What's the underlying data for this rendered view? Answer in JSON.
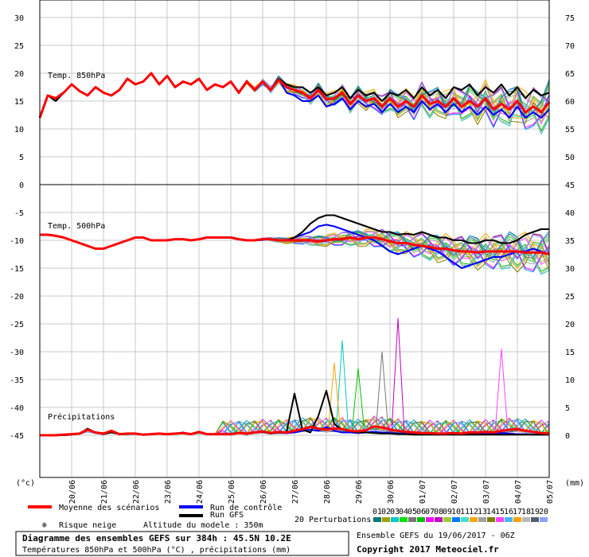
{
  "chart_data": {
    "type": "line",
    "title": "Diagramme des ensembles GEFS sur 384h : 45.5N 10.2E",
    "subtitle": "Températures 850hPa et 500hPa (°C) , précipitations (mm)",
    "run_info": "Ensemble GEFS du 19/06/2017 - 06Z",
    "copyright": "Copyright 2017 Meteociel.fr",
    "altitude_note": "Altitude du modele : 350m",
    "left_unit": "(°c)",
    "right_unit": "(mm)",
    "x_tick_labels": [
      "20/06",
      "21/06",
      "22/06",
      "23/06",
      "24/06",
      "25/06",
      "26/06",
      "27/06",
      "28/06",
      "29/06",
      "30/06",
      "01/07",
      "02/07",
      "03/07",
      "04/07",
      "05/07"
    ],
    "x_range_days": [
      0,
      16
    ],
    "left_axis": {
      "ticks_top": [
        "30",
        "25",
        "20",
        "15",
        "10",
        "5",
        "0"
      ],
      "ticks_bottom": [
        "-5",
        "-10",
        "-15",
        "-20",
        "-25",
        "-30",
        "-35",
        "-40",
        "-45"
      ]
    },
    "right_axis": {
      "ticks_top": [
        "75",
        "70",
        "65",
        "60",
        "55",
        "50",
        "45"
      ],
      "ticks_bottom": [
        "40",
        "35",
        "30",
        "25",
        "20",
        "15",
        "10",
        "5",
        "0"
      ]
    },
    "panels": {
      "t850": {
        "label": "Temp. 850hPa",
        "ylim": [
          0,
          30
        ],
        "mean": [
          12,
          16,
          15.5,
          16.5,
          18,
          16.8,
          16,
          17.5,
          16.5,
          16,
          17,
          19,
          18,
          18.5,
          20,
          18,
          19.5,
          17.5,
          18.5,
          18,
          19,
          17,
          18,
          17.5,
          18.5,
          16.5,
          18.5,
          17,
          18.5,
          17,
          18.8,
          17.5,
          17,
          16.5,
          15.5,
          17,
          15.3,
          15.5,
          16.5,
          14.5,
          16,
          15,
          15.5,
          14,
          15.5,
          14,
          15,
          14,
          16,
          14.5,
          15,
          14,
          15.5,
          14,
          15,
          14,
          15.5,
          13.5,
          14.5,
          13.5,
          15,
          13,
          14,
          13,
          14.8
        ],
        "control": [
          12,
          16,
          15.5,
          16.5,
          18,
          16.8,
          16,
          17.5,
          16.5,
          16,
          17,
          19,
          18,
          18.5,
          20,
          18,
          19.5,
          17.5,
          18.5,
          18,
          19,
          17,
          18,
          17.5,
          18.5,
          16.5,
          18.5,
          17,
          18.5,
          17,
          19,
          16.5,
          16,
          15,
          15,
          16,
          14,
          14.5,
          15.5,
          13.5,
          15,
          14,
          14.5,
          13,
          14.5,
          13,
          14,
          13,
          15,
          13.5,
          14.5,
          13,
          14.5,
          13,
          14,
          12.5,
          14,
          12.5,
          13.5,
          12,
          14,
          12,
          13,
          12,
          13.5
        ],
        "gfs": [
          12,
          16,
          15,
          16.5,
          18,
          16.8,
          16,
          17.5,
          16.5,
          16,
          17,
          19,
          18,
          18.5,
          20,
          18,
          19.5,
          17.5,
          18.5,
          18,
          19,
          17,
          18,
          17.5,
          18.5,
          16.5,
          18.5,
          17,
          18.5,
          17,
          19,
          18,
          17.5,
          17.5,
          16.5,
          17.5,
          16,
          16.5,
          17.5,
          15.5,
          17,
          16,
          16.5,
          15,
          16.5,
          16,
          17,
          15.5,
          17.5,
          16,
          17,
          15.5,
          17.5,
          17,
          18,
          16,
          17.5,
          16.5,
          18,
          16,
          17.5,
          15.5,
          17,
          16,
          16.5
        ]
      },
      "t500": {
        "label": "Temp. 500hPa",
        "ylim": [
          -45,
          0
        ],
        "mean": [
          -9,
          -9,
          -9.2,
          -9.5,
          -10,
          -10.5,
          -11,
          -11.5,
          -11.5,
          -11,
          -10.5,
          -10,
          -9.5,
          -9.5,
          -10,
          -10,
          -10,
          -9.8,
          -9.8,
          -10,
          -9.8,
          -9.5,
          -9.5,
          -9.5,
          -9.5,
          -9.8,
          -10,
          -10,
          -9.8,
          -9.8,
          -10,
          -10,
          -10,
          -10,
          -10,
          -10.2,
          -10,
          -9.8,
          -9.8,
          -9.5,
          -9.8,
          -9.5,
          -9.5,
          -9.8,
          -10.2,
          -10.5,
          -10.5,
          -10.8,
          -11,
          -11.2,
          -11.5,
          -11.5,
          -11.8,
          -12,
          -12,
          -12.2,
          -12,
          -12,
          -12,
          -12,
          -12,
          -12.2,
          -12.2,
          -12.2,
          -12.5
        ],
        "control": [
          -9,
          -9,
          -9.2,
          -9.5,
          -10,
          -10.5,
          -11,
          -11.5,
          -11.5,
          -11,
          -10.5,
          -10,
          -9.5,
          -9.5,
          -10,
          -10,
          -10,
          -9.8,
          -9.8,
          -10,
          -9.8,
          -9.5,
          -9.5,
          -9.5,
          -9.5,
          -9.8,
          -10,
          -10,
          -9.8,
          -9.8,
          -10,
          -10,
          -9.5,
          -9,
          -8.5,
          -7.5,
          -7.2,
          -7.5,
          -8,
          -8.5,
          -9,
          -9.5,
          -10,
          -11,
          -12,
          -12.5,
          -12,
          -11.5,
          -11,
          -11.5,
          -12,
          -13,
          -14,
          -15,
          -14.5,
          -14,
          -13.5,
          -13,
          -13,
          -12.5,
          -12,
          -12,
          -11.5,
          -12,
          -12.5
        ],
        "gfs": [
          -9,
          -9,
          -9.2,
          -9.5,
          -10,
          -10.5,
          -11,
          -11.5,
          -11.5,
          -11,
          -10.5,
          -10,
          -9.5,
          -9.5,
          -10,
          -10,
          -10,
          -9.8,
          -9.8,
          -10,
          -9.8,
          -9.5,
          -9.5,
          -9.5,
          -9.5,
          -9.8,
          -10,
          -10,
          -9.8,
          -9.8,
          -10,
          -10,
          -9.5,
          -8.5,
          -7,
          -6,
          -5.5,
          -5.5,
          -6,
          -6.5,
          -7,
          -7.5,
          -8,
          -8.5,
          -8.5,
          -9,
          -8.8,
          -9,
          -8.5,
          -9,
          -9.5,
          -9.5,
          -10,
          -10,
          -10.5,
          -10.5,
          -10,
          -10,
          -10.5,
          -10.5,
          -10,
          -9,
          -8.5,
          -8,
          -8
        ]
      },
      "precip": {
        "label": "Précipitations",
        "ylim_mm": [
          0,
          40
        ],
        "mean": [
          0,
          0,
          0,
          0.1,
          0.2,
          0.3,
          1,
          0.5,
          0.3,
          0.8,
          0.2,
          0.3,
          0.3,
          0.1,
          0.2,
          0.3,
          0.2,
          0.3,
          0.4,
          0.2,
          0.6,
          0.2,
          0.2,
          0.2,
          0.2,
          0.4,
          0.3,
          0.5,
          0.7,
          0.4,
          0.6,
          0.5,
          0.8,
          1.1,
          1.5,
          1.2,
          1,
          1.2,
          1.1,
          0.8,
          0.7,
          0.9,
          1.6,
          1.4,
          1,
          0.8,
          0.6,
          0.5,
          0.4,
          0.4,
          0.3,
          0.3,
          0.4,
          0.3,
          0.5,
          0.5,
          0.6,
          0.5,
          0.8,
          1,
          1.1,
          0.8,
          0.6,
          0.4,
          0.3
        ],
        "control": [
          0,
          0,
          0,
          0,
          0.1,
          0.3,
          1,
          0.5,
          0.2,
          0.8,
          0.2,
          0.2,
          0.3,
          0.1,
          0.2,
          0.3,
          0.2,
          0.3,
          0.5,
          0.2,
          0.6,
          0.2,
          0.2,
          0.2,
          0.2,
          0.5,
          0.2,
          0.5,
          0.6,
          0.3,
          0.5,
          0.4,
          0.5,
          0.8,
          1,
          0.8,
          1.5,
          0.8,
          0.5,
          0.5,
          0.4,
          0.5,
          0.6,
          0.5,
          0.4,
          0.3,
          0.3,
          0.2,
          0.2,
          0.2,
          0.1,
          0.2,
          0.2,
          0.1,
          0.2,
          0.3,
          0.2,
          0.3,
          0.4,
          0.3,
          0.2,
          0.2,
          0.1,
          0.1,
          0.1
        ],
        "gfs": [
          0,
          0,
          0,
          0,
          0.1,
          0.3,
          1.2,
          0.5,
          0.2,
          0.5,
          0.2,
          0.2,
          0.3,
          0.1,
          0.2,
          0.3,
          0.2,
          0.3,
          0.4,
          0.2,
          0.5,
          0.2,
          0.2,
          0.2,
          0.2,
          0.4,
          0.2,
          0.5,
          0.6,
          0.3,
          0.5,
          0.6,
          7.5,
          1,
          0.5,
          3.5,
          8,
          2,
          1,
          0.8,
          0.5,
          0.5,
          0.4,
          0.3,
          0.3,
          0.2,
          0.2,
          0.1,
          0.1,
          0.1,
          0.1,
          0.1,
          0.1,
          0.1,
          0.1,
          0.1,
          0.1,
          0.1,
          0.1,
          0.1,
          0.1,
          0.1,
          0.1,
          0.1,
          0.1
        ],
        "perturbation_peaks": [
          {
            "member": "03",
            "day": 9.5,
            "value": 17
          },
          {
            "member": "08",
            "day": 11.25,
            "value": 21
          },
          {
            "member": "15",
            "day": 14.5,
            "value": 15.5
          },
          {
            "member": "05",
            "day": 10.75,
            "value": 15
          },
          {
            "member": "12",
            "day": 9.25,
            "value": 13
          },
          {
            "member": "06",
            "day": 10,
            "value": 12
          }
        ]
      }
    },
    "legend": {
      "mean_label": "Moyenne des scénarios",
      "control_label": "Run de contrôle",
      "gfs_label": "Run GFS",
      "snow_label": "Risque neige",
      "perturbations_label": "20 Perturbations",
      "mean_color": "#ff0000",
      "control_color": "#0000ff",
      "gfs_color": "#000000",
      "perturbation_ids": [
        "01",
        "02",
        "03",
        "04",
        "05",
        "06",
        "07",
        "08",
        "09",
        "10",
        "11",
        "12",
        "13",
        "14",
        "15",
        "16",
        "17",
        "18",
        "19",
        "20"
      ],
      "perturbation_colors": [
        "#007878",
        "#a0a000",
        "#00c8c8",
        "#00dc00",
        "#787878",
        "#00c000",
        "#ff00ff",
        "#c000c0",
        "#9acd32",
        "#0078ff",
        "#40e0d0",
        "#ffa500",
        "#a0a0a0",
        "#808000",
        "#ff40ff",
        "#46b4ff",
        "#ffa000",
        "#b8b8b8",
        "#506070",
        "#90a0ff"
      ]
    }
  }
}
